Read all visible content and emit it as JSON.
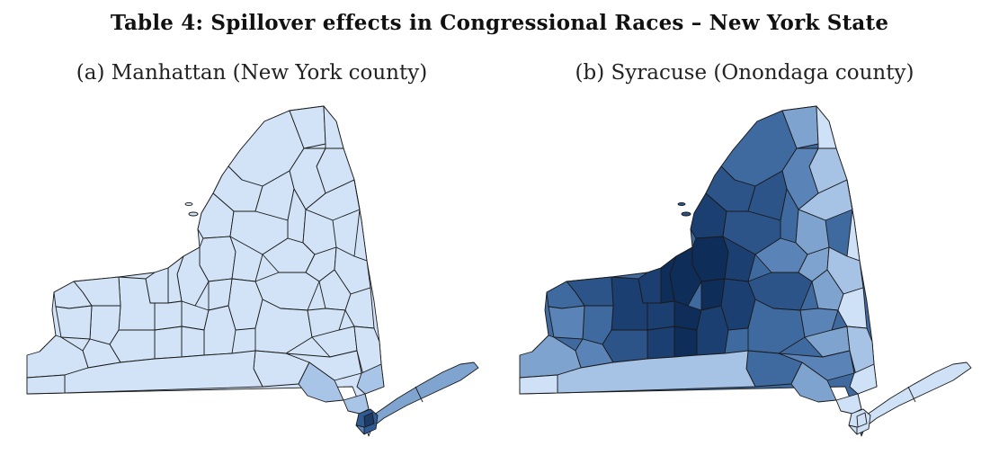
{
  "title": "Table 4: Spillover effects in Congressional Races – New York State",
  "panels": [
    {
      "id": "a",
      "title": "(a) Manhattan (New York county)",
      "focal_county": "New York",
      "colors": {
        "base": "#d2e3f7",
        "nyc": [
          "#1c3a66",
          "#2f5a93",
          "#5c86bd"
        ],
        "long_island": [
          "#7fa4d0",
          "#a8c4e6"
        ]
      }
    },
    {
      "id": "b",
      "title": "(b) Syracuse (Onondaga county)",
      "focal_county": "Onondaga",
      "colors": {
        "ramp": [
          "#0f2d59",
          "#1c3f72",
          "#2c5489",
          "#3f6aa0",
          "#5a84b8",
          "#7ea3cf",
          "#a6c3e6",
          "#cfe1f6"
        ]
      }
    }
  ]
}
